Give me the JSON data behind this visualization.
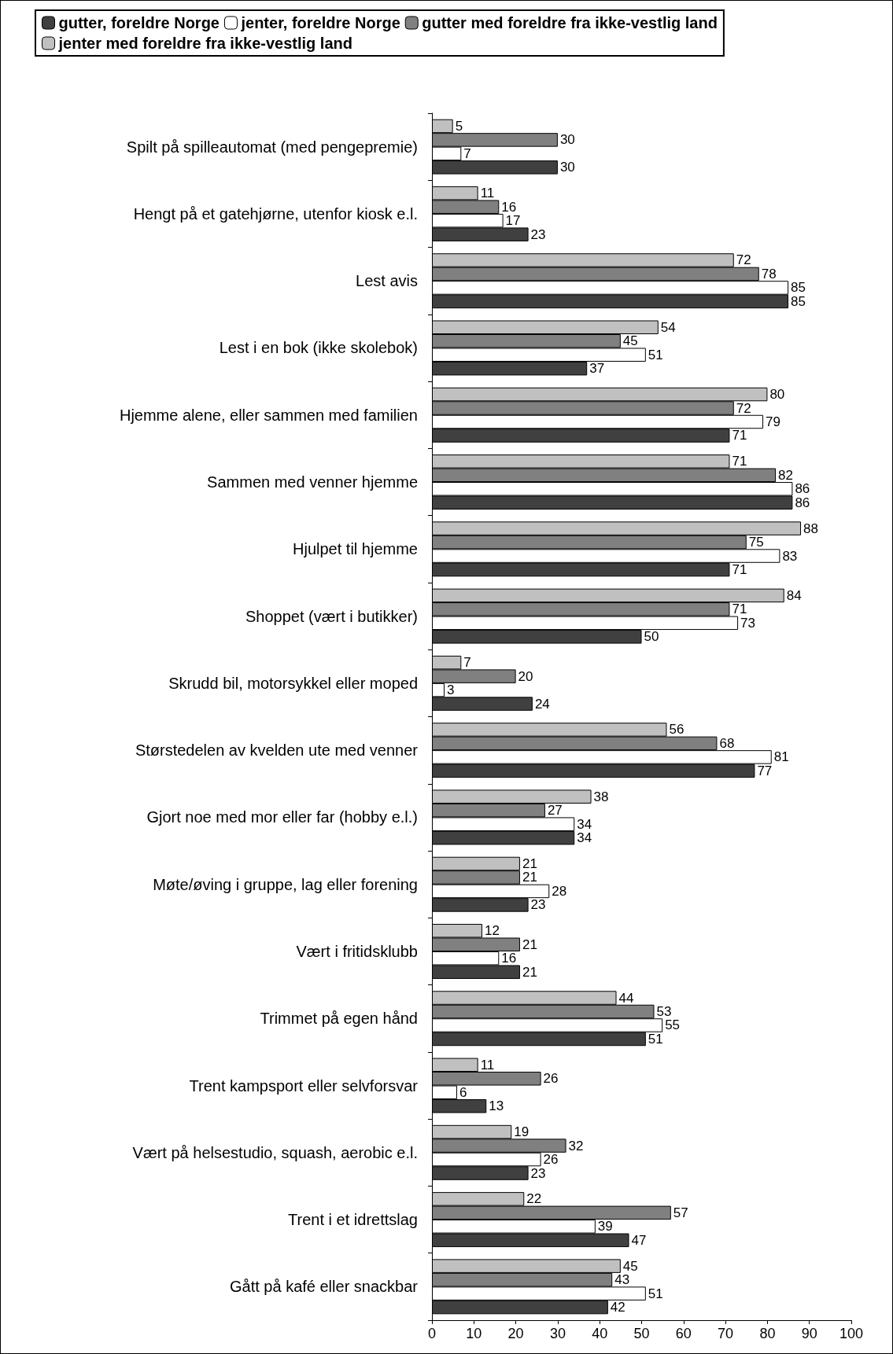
{
  "chart_data": {
    "type": "bar",
    "orientation": "horizontal",
    "categories": [
      "Spilt på spilleautomat (med pengepremie)",
      "Hengt på et gatehjørne, utenfor kiosk e.l.",
      "Lest avis",
      "Lest i en bok (ikke skolebok)",
      "Hjemme alene, eller sammen med familien",
      "Sammen med venner hjemme",
      "Hjulpet til hjemme",
      "Shoppet (vært i butikker)",
      "Skrudd bil, motorsykkel eller moped",
      "Størstedelen av kvelden ute med venner",
      "Gjort noe med mor eller far (hobby e.l.)",
      "Møte/øving i gruppe, lag eller forening",
      "Vært i fritidsklubb",
      "Trimmet på egen hånd",
      "Trent kampsport eller selvforsvar",
      "Vært på helsestudio, squash, aerobic e.l.",
      "Trent i et idrettslag",
      "Gått på kafé eller snackbar"
    ],
    "series": [
      {
        "name": "gutter, foreldre Norge",
        "color": "#404040",
        "values": [
          30,
          23,
          85,
          37,
          71,
          86,
          71,
          50,
          24,
          77,
          34,
          23,
          21,
          51,
          13,
          23,
          47,
          42
        ]
      },
      {
        "name": "jenter, foreldre Norge",
        "color": "#ffffff",
        "values": [
          7,
          17,
          85,
          51,
          79,
          86,
          83,
          73,
          3,
          81,
          34,
          28,
          16,
          55,
          6,
          26,
          39,
          51
        ]
      },
      {
        "name": "gutter med foreldre fra ikke-vestlig land",
        "color": "#808080",
        "values": [
          30,
          16,
          78,
          45,
          72,
          82,
          75,
          71,
          20,
          68,
          27,
          21,
          21,
          53,
          26,
          32,
          57,
          43
        ]
      },
      {
        "name": "jenter med foreldre fra ikke-vestlig land",
        "color": "#c0c0c0",
        "values": [
          5,
          11,
          72,
          54,
          80,
          71,
          88,
          84,
          7,
          56,
          38,
          21,
          12,
          44,
          11,
          19,
          22,
          45
        ]
      }
    ],
    "xlim": [
      0,
      100
    ],
    "xticks": [
      0,
      10,
      20,
      30,
      40,
      50,
      60,
      70,
      80,
      90,
      100
    ],
    "data_labels": true,
    "grid": false,
    "legend": "top"
  }
}
